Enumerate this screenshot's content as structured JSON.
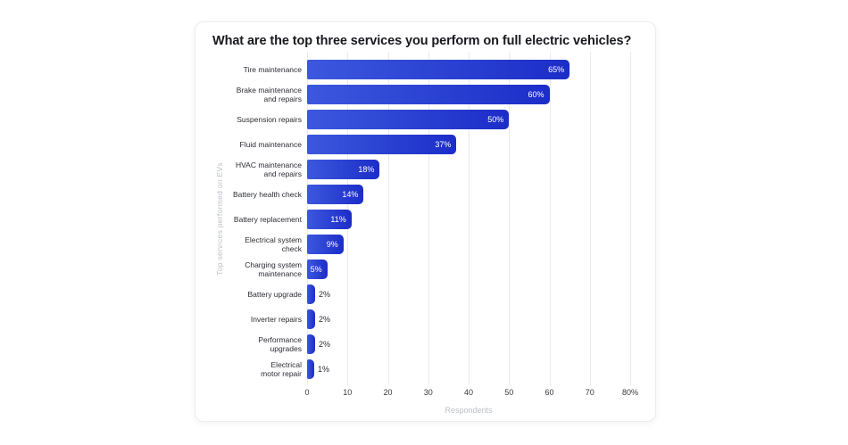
{
  "chart_data": {
    "type": "bar",
    "orientation": "horizontal",
    "title": "What are the top three services you perform on full electric vehicles?",
    "xlabel": "Respondents",
    "ylabel": "Top services performed on EVs",
    "xlim": [
      0,
      80
    ],
    "grid": true,
    "legend_position": "none",
    "xticks": [
      {
        "value": 0,
        "label": "0"
      },
      {
        "value": 10,
        "label": "10"
      },
      {
        "value": 20,
        "label": "20"
      },
      {
        "value": 30,
        "label": "30"
      },
      {
        "value": 40,
        "label": "40"
      },
      {
        "value": 50,
        "label": "50"
      },
      {
        "value": 60,
        "label": "60"
      },
      {
        "value": 70,
        "label": "70"
      },
      {
        "value": 80,
        "label": "80%"
      }
    ],
    "categories": [
      "Tire maintenance",
      "Brake maintenance\nand repairs",
      "Suspension repairs",
      "Fluid maintenance",
      "HVAC maintenance\nand repairs",
      "Battery health check",
      "Battery replacement",
      "Electrical system check",
      "Charging system\nmaintenance",
      "Battery upgrade",
      "Inverter repairs",
      "Performance\nupgrades",
      "Electrical\nmotor repair"
    ],
    "values": [
      65,
      60,
      50,
      37,
      18,
      14,
      11,
      9,
      5,
      2,
      2,
      2,
      1
    ],
    "value_labels": [
      "65%",
      "60%",
      "50%",
      "37%",
      "18%",
      "14%",
      "11%",
      "9%",
      "5%",
      "2%",
      "2%",
      "2%",
      "1%"
    ],
    "inside_label_min_value": 5,
    "colors": {
      "bar_gradient_start": "#3c58de",
      "bar_gradient_end": "#1c2dc8",
      "gridline": "#eaeaef",
      "title_text": "#17191e",
      "category_text": "#2b2d34",
      "tick_text": "#36383e",
      "muted_text": "#bcbfc6",
      "value_inside_text": "#ffffff",
      "card_background": "#ffffff",
      "card_border": "#ececf1"
    }
  }
}
